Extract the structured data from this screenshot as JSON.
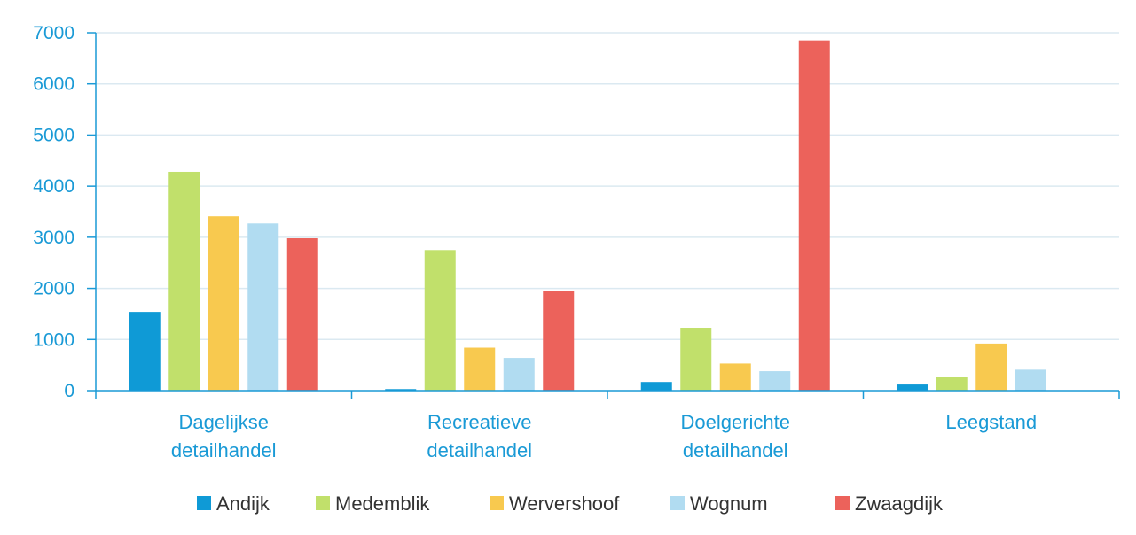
{
  "chart_data": {
    "type": "bar",
    "categories": [
      [
        "Dagelijkse",
        "detailhandel"
      ],
      [
        "Recreatieve",
        "detailhandel"
      ],
      [
        "Doelgerichte",
        "detailhandel"
      ],
      [
        "Leegstand"
      ]
    ],
    "series": [
      {
        "name": "Andijk",
        "color": "#0f9ad6",
        "values": [
          1540,
          30,
          170,
          120
        ]
      },
      {
        "name": "Medemblik",
        "color": "#c1e06b",
        "values": [
          4280,
          2750,
          1230,
          260
        ]
      },
      {
        "name": "Wervershoof",
        "color": "#f8c94f",
        "values": [
          3410,
          840,
          530,
          920
        ]
      },
      {
        "name": "Wognum",
        "color": "#b1dcf1",
        "values": [
          3270,
          640,
          380,
          410
        ]
      },
      {
        "name": "Zwaagdijk",
        "color": "#ec625b",
        "values": [
          2980,
          1950,
          6850,
          0
        ]
      }
    ],
    "ylim": [
      0,
      7000
    ],
    "yticks": [
      0,
      1000,
      2000,
      3000,
      4000,
      5000,
      6000,
      7000
    ],
    "grid": true,
    "legend_position": "bottom",
    "axis_color": "#1a9ad6",
    "grid_color": "#dbe9f1"
  }
}
